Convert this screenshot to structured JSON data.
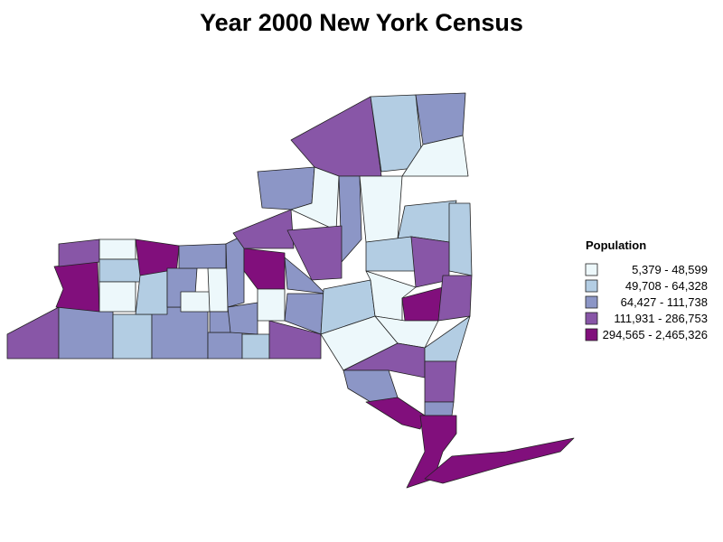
{
  "title": "Year 2000 New York Census",
  "legend": {
    "title": "Population",
    "items": [
      {
        "label": "5,379 - 48,599",
        "color": "#edf8fb"
      },
      {
        "label": "49,708 - 64,328",
        "color": "#b3cde3"
      },
      {
        "label": "64,427 - 111,738",
        "color": "#8c96c6"
      },
      {
        "label": "111,931 - 286,753",
        "color": "#8856a7"
      },
      {
        "label": "294,565 - 2,465,326",
        "color": "#810f7c"
      }
    ]
  }
}
